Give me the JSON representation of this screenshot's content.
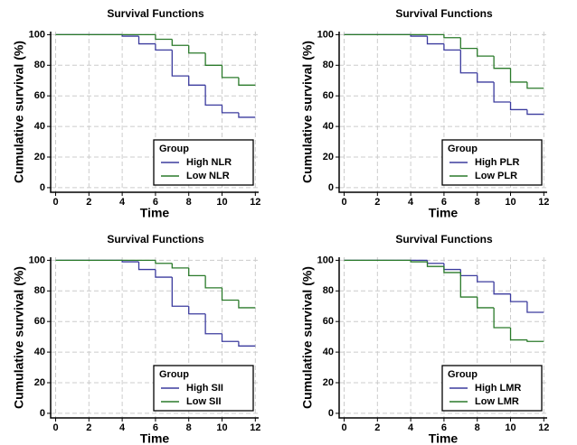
{
  "chart_data": [
    {
      "type": "step",
      "title": "Survival Functions",
      "x_label": "Time",
      "y_label": "Cumulative survival (%)",
      "x": [
        0,
        4,
        5,
        6,
        7,
        8,
        9,
        10,
        11,
        12
      ],
      "series": [
        {
          "name": "High NLR",
          "color": "#3b3b9e",
          "values": [
            100,
            99,
            94,
            90,
            73,
            67,
            54,
            49,
            46,
            46
          ]
        },
        {
          "name": "Low NLR",
          "color": "#2a7a2a",
          "values": [
            100,
            100,
            100,
            97,
            93,
            88,
            80,
            72,
            67,
            67
          ]
        }
      ],
      "xlim": [
        -0.3,
        12.2
      ],
      "ylim": [
        -3,
        102
      ],
      "xticks": [
        0,
        2,
        4,
        6,
        8,
        10,
        12
      ],
      "yticks": [
        0,
        20,
        40,
        60,
        80,
        100
      ],
      "grid": true,
      "legend_title": "Group",
      "legend": "lower right"
    },
    {
      "type": "step",
      "title": "Survival Functions",
      "x_label": "Time",
      "y_label": "Cumulative survival (%)",
      "x": [
        0,
        4,
        5,
        6,
        7,
        8,
        9,
        10,
        11,
        12
      ],
      "series": [
        {
          "name": "High PLR",
          "color": "#3b3b9e",
          "values": [
            100,
            99,
            94,
            90,
            75,
            69,
            56,
            51,
            48,
            48
          ]
        },
        {
          "name": "Low PLR",
          "color": "#2a7a2a",
          "values": [
            100,
            100,
            100,
            98,
            91,
            86,
            78,
            69,
            65,
            65
          ]
        }
      ],
      "xlim": [
        -0.3,
        12.2
      ],
      "ylim": [
        -3,
        102
      ],
      "xticks": [
        0,
        2,
        4,
        6,
        8,
        10,
        12
      ],
      "yticks": [
        0,
        20,
        40,
        60,
        80,
        100
      ],
      "grid": true,
      "legend_title": "Group",
      "legend": "lower right"
    },
    {
      "type": "step",
      "title": "Survival Functions",
      "x_label": "Time",
      "y_label": "Cumulative survival (%)",
      "x": [
        0,
        4,
        5,
        6,
        7,
        8,
        9,
        10,
        11,
        12
      ],
      "series": [
        {
          "name": "High SII",
          "color": "#3b3b9e",
          "values": [
            100,
            99,
            94,
            89,
            70,
            65,
            52,
            47,
            44,
            44
          ]
        },
        {
          "name": "Low SII",
          "color": "#2a7a2a",
          "values": [
            100,
            100,
            100,
            98,
            95,
            90,
            82,
            74,
            69,
            69
          ]
        }
      ],
      "xlim": [
        -0.3,
        12.2
      ],
      "ylim": [
        -3,
        102
      ],
      "xticks": [
        0,
        2,
        4,
        6,
        8,
        10,
        12
      ],
      "yticks": [
        0,
        20,
        40,
        60,
        80,
        100
      ],
      "grid": true,
      "legend_title": "Group",
      "legend": "lower right"
    },
    {
      "type": "step",
      "title": "Survival Functions",
      "x_label": "Time",
      "y_label": "Cumulative survival (%)",
      "x": [
        0,
        4,
        5,
        6,
        7,
        8,
        9,
        10,
        11,
        12
      ],
      "series": [
        {
          "name": "High LMR",
          "color": "#3b3b9e",
          "values": [
            100,
            100,
            98,
            94,
            90,
            86,
            78,
            73,
            66,
            66
          ]
        },
        {
          "name": "Low LMR",
          "color": "#2a7a2a",
          "values": [
            100,
            99,
            96,
            92,
            76,
            69,
            56,
            48,
            47,
            47
          ]
        }
      ],
      "xlim": [
        -0.3,
        12.2
      ],
      "ylim": [
        -3,
        102
      ],
      "xticks": [
        0,
        2,
        4,
        6,
        8,
        10,
        12
      ],
      "yticks": [
        0,
        20,
        40,
        60,
        80,
        100
      ],
      "grid": true,
      "legend_title": "Group",
      "legend": "lower right"
    }
  ]
}
